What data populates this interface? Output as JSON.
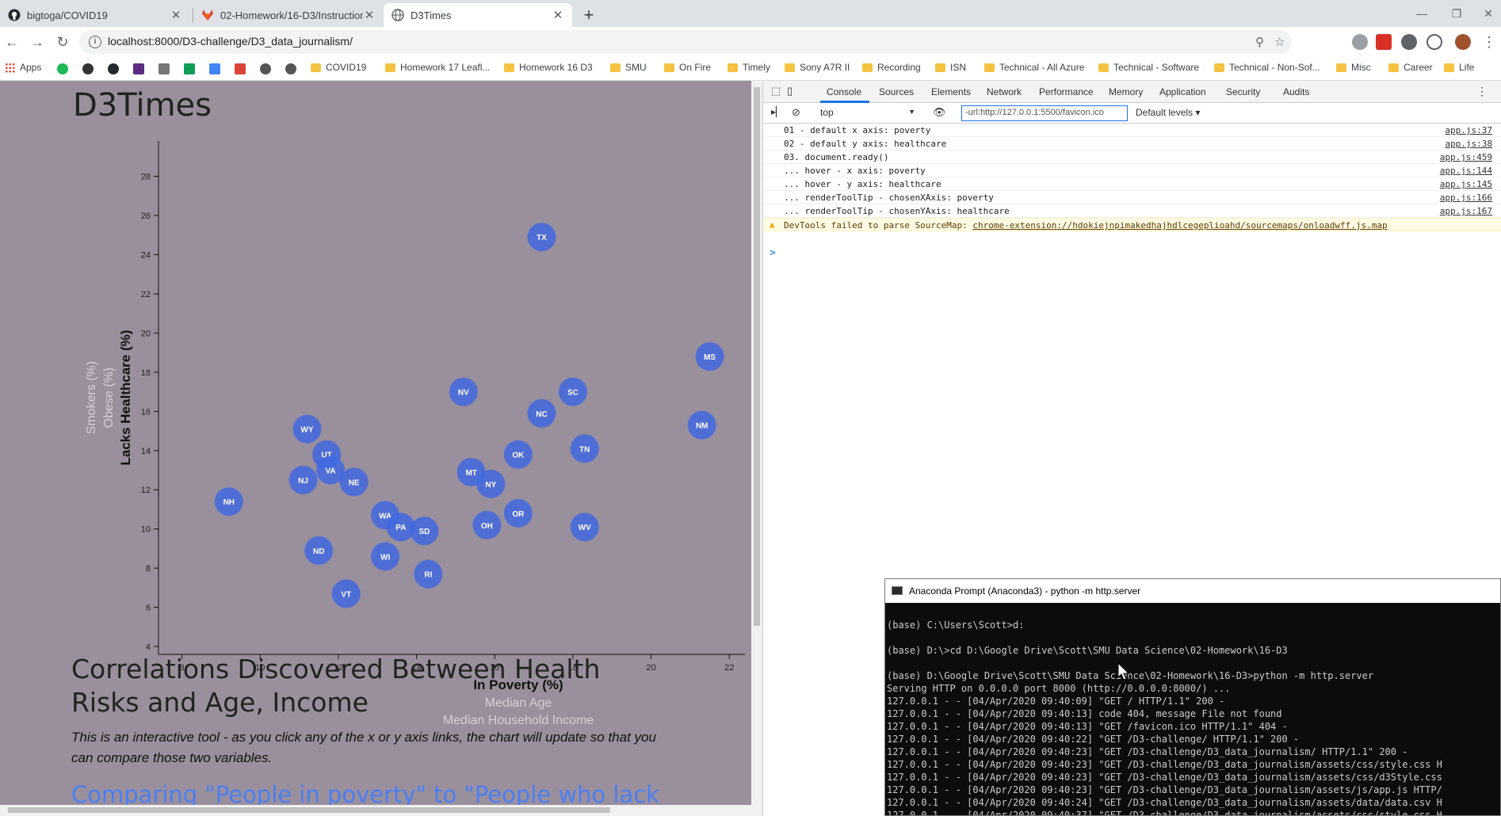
{
  "browser": {
    "tabs": [
      {
        "title": "bigtoga/COVID19",
        "icon": "github-icon",
        "active": false
      },
      {
        "title": "02-Homework/16-D3/Instruction",
        "icon": "gitlab-icon",
        "active": false
      },
      {
        "title": "D3Times",
        "icon": "globe-icon",
        "active": true
      }
    ],
    "url": "localhost:8000/D3-challenge/D3_data_journalism/",
    "bookmarks": {
      "apps": "Apps",
      "folders": [
        "COVID19",
        "Homework 17 Leafl...",
        "Homework 16 D3",
        "SMU",
        "On Fire",
        "Timely",
        "Sony A7R II",
        "Recording",
        "ISN",
        "Technical - All Azure",
        "Technical - Software",
        "Technical - Non-Sof...",
        "Misc",
        "Career",
        "Life"
      ]
    }
  },
  "page": {
    "title": "D3Times",
    "section_heading": "Correlations Discovered Between Health Risks and Age, Income",
    "section_body": "This is an interactive tool - as you click any of the x or y axis links, the chart will update so that you can compare those two variables.",
    "section_link": "Comparing \"People in poverty\" to \"People who lack"
  },
  "chart_data": {
    "type": "scatter",
    "xlim": [
      7.4,
      22.4
    ],
    "ylim": [
      3.6,
      29.8
    ],
    "x_ticks": [
      8,
      10,
      12,
      14,
      16,
      18,
      20,
      22
    ],
    "y_ticks": [
      4,
      6,
      8,
      10,
      12,
      14,
      16,
      18,
      20,
      22,
      24,
      26,
      28
    ],
    "x_labels": [
      {
        "text": "In Poverty (%)",
        "active": true
      },
      {
        "text": "Median Age",
        "active": false
      },
      {
        "text": "Median Household Income",
        "active": false
      }
    ],
    "y_labels": [
      {
        "text": "Lacks Healthcare (%)",
        "active": true
      },
      {
        "text": "Obese (%)",
        "active": false
      },
      {
        "text": "Smokers (%)",
        "active": false
      }
    ],
    "point_color": "#4169e1",
    "points": [
      {
        "abbr": "TX",
        "x": 17.2,
        "y": 24.9
      },
      {
        "abbr": "MS",
        "x": 21.5,
        "y": 18.8
      },
      {
        "abbr": "NV",
        "x": 15.2,
        "y": 17.0
      },
      {
        "abbr": "SC",
        "x": 18.0,
        "y": 17.0
      },
      {
        "abbr": "NC",
        "x": 17.2,
        "y": 15.9
      },
      {
        "abbr": "NM",
        "x": 21.3,
        "y": 15.3
      },
      {
        "abbr": "WY",
        "x": 11.2,
        "y": 15.1
      },
      {
        "abbr": "TN",
        "x": 18.3,
        "y": 14.1
      },
      {
        "abbr": "UT",
        "x": 11.7,
        "y": 13.8
      },
      {
        "abbr": "OK",
        "x": 16.6,
        "y": 13.8
      },
      {
        "abbr": "VA",
        "x": 11.8,
        "y": 13.0
      },
      {
        "abbr": "MT",
        "x": 15.4,
        "y": 12.9
      },
      {
        "abbr": "NJ",
        "x": 11.1,
        "y": 12.5
      },
      {
        "abbr": "NE",
        "x": 12.4,
        "y": 12.4
      },
      {
        "abbr": "NY",
        "x": 15.9,
        "y": 12.3
      },
      {
        "abbr": "NH",
        "x": 9.2,
        "y": 11.4
      },
      {
        "abbr": "OR",
        "x": 16.6,
        "y": 10.8
      },
      {
        "abbr": "WA",
        "x": 13.2,
        "y": 10.7
      },
      {
        "abbr": "OH",
        "x": 15.8,
        "y": 10.2
      },
      {
        "abbr": "WV",
        "x": 18.3,
        "y": 10.1
      },
      {
        "abbr": "PA",
        "x": 13.6,
        "y": 10.1
      },
      {
        "abbr": "SD",
        "x": 14.2,
        "y": 9.9
      },
      {
        "abbr": "ND",
        "x": 11.5,
        "y": 8.9
      },
      {
        "abbr": "WI",
        "x": 13.2,
        "y": 8.6
      },
      {
        "abbr": "RI",
        "x": 14.3,
        "y": 7.7
      },
      {
        "abbr": "VT",
        "x": 12.2,
        "y": 6.7
      }
    ]
  },
  "devtools": {
    "tabs": [
      "Console",
      "Sources",
      "Elements",
      "Network",
      "Performance",
      "Memory",
      "Application",
      "Security",
      "Audits"
    ],
    "active_tab": "Console",
    "context": "top",
    "filter": "-url:http://127.0.0.1:5500/favicon.ico",
    "levels": "Default levels",
    "logs": [
      {
        "msg": "01 - default x axis: poverty",
        "src": "app.js:37"
      },
      {
        "msg": "02 - default y axis: healthcare",
        "src": "app.js:38"
      },
      {
        "msg": "03. document.ready()",
        "src": "app.js:459"
      },
      {
        "msg": "... hover - x axis: poverty",
        "src": "app.js:144"
      },
      {
        "msg": "... hover - y axis: healthcare",
        "src": "app.js:145"
      },
      {
        "msg": "... renderToolTip - chosenXAxis: poverty",
        "src": "app.js:166"
      },
      {
        "msg": "... renderToolTip - chosenYAxis: healthcare",
        "src": "app.js:167"
      }
    ],
    "warning": {
      "text": "DevTools failed to parse SourceMap: ",
      "link": "chrome-extension://hdokiejnpimakedhajhdlcegeplioahd/sourcemaps/onloadwff.js.map"
    },
    "prompt": ">"
  },
  "terminal": {
    "title": "Anaconda Prompt (Anaconda3) - python  -m http.server",
    "lines": [
      "",
      "(base) C:\\Users\\Scott>d:",
      "",
      "(base) D:\\>cd D:\\Google Drive\\Scott\\SMU Data Science\\02-Homework\\16-D3",
      "",
      "(base) D:\\Google Drive\\Scott\\SMU Data Science\\02-Homework\\16-D3>python -m http.server",
      "Serving HTTP on 0.0.0.0 port 8000 (http://0.0.0.0:8000/) ...",
      "127.0.0.1 - - [04/Apr/2020 09:40:09] \"GET / HTTP/1.1\" 200 -",
      "127.0.0.1 - - [04/Apr/2020 09:40:13] code 404, message File not found",
      "127.0.0.1 - - [04/Apr/2020 09:40:13] \"GET /favicon.ico HTTP/1.1\" 404 -",
      "127.0.0.1 - - [04/Apr/2020 09:40:22] \"GET /D3-challenge/ HTTP/1.1\" 200 -",
      "127.0.0.1 - - [04/Apr/2020 09:40:23] \"GET /D3-challenge/D3_data_journalism/ HTTP/1.1\" 200 -",
      "127.0.0.1 - - [04/Apr/2020 09:40:23] \"GET /D3-challenge/D3_data_journalism/assets/css/style.css H",
      "127.0.0.1 - - [04/Apr/2020 09:40:23] \"GET /D3-challenge/D3_data_journalism/assets/css/d3Style.css",
      "127.0.0.1 - - [04/Apr/2020 09:40:23] \"GET /D3-challenge/D3_data_journalism/assets/js/app.js HTTP/",
      "127.0.0.1 - - [04/Apr/2020 09:40:24] \"GET /D3-challenge/D3_data_journalism/assets/data/data.csv H",
      "127.0.0.1 - - [04/Apr/2020 09:40:37] \"GET /D3-challenge/D3_data_journalism/assets/css/style.css H"
    ]
  }
}
